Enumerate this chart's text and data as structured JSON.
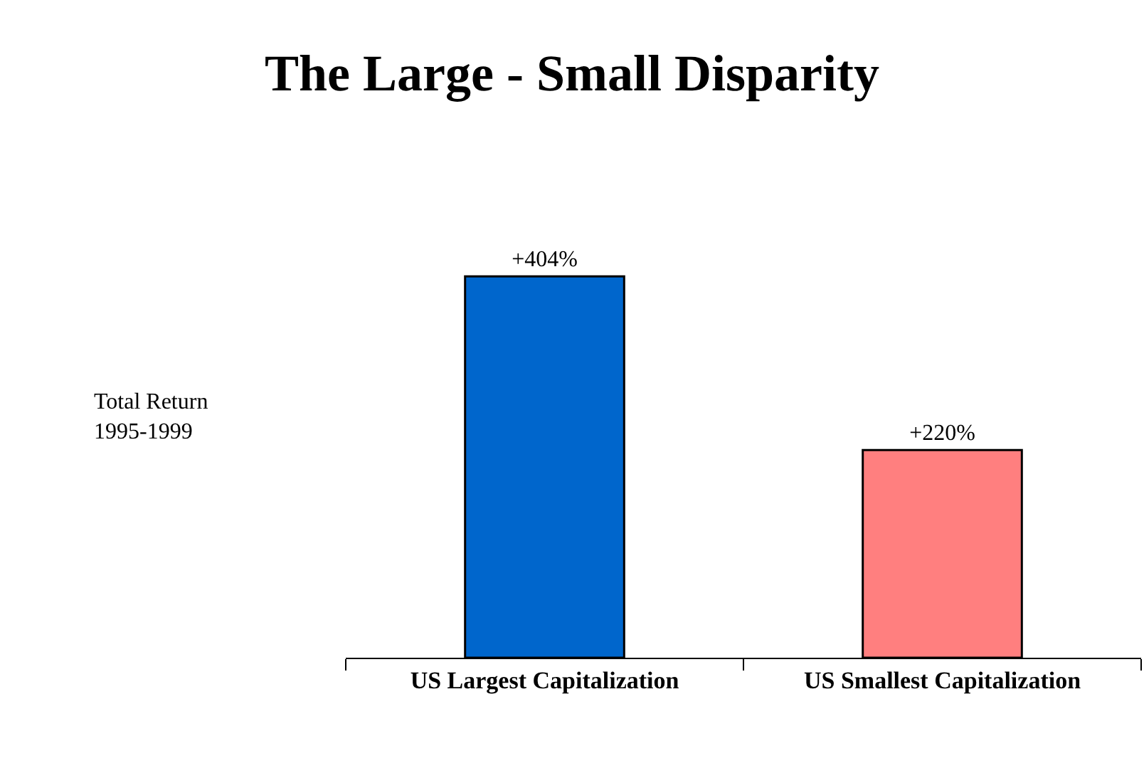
{
  "chart_data": {
    "type": "bar",
    "title": "The Large - Small Disparity",
    "annotations": [
      "Total Return\n1995-1999"
    ],
    "categories": [
      "US Largest Capitalization",
      "US Smallest Capitalization"
    ],
    "values": [
      404,
      220
    ],
    "colors": [
      "#0066cc",
      "#ff7f7f"
    ],
    "value_labels": [
      "+404%",
      "+220%"
    ]
  }
}
